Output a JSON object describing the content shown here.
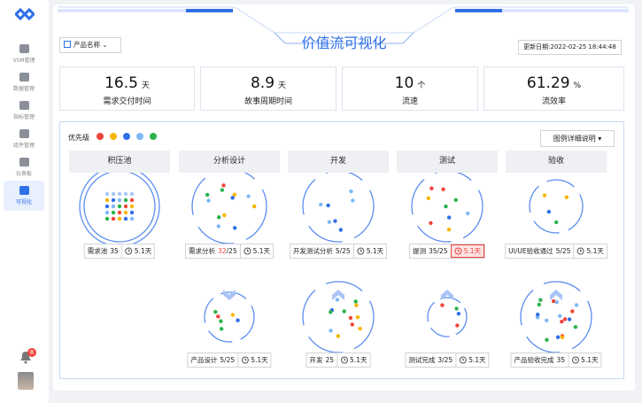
{
  "sidebar": {
    "menu": [
      "VSM管理",
      "数据管理",
      "指标管理",
      "组件管理",
      "仪表板",
      "可视化"
    ],
    "badge": "8"
  },
  "header": {
    "title": "价值流可视化",
    "product_select": "产品名称",
    "update_time": "更新日期:2022-02-25 18:44:48"
  },
  "metrics": [
    {
      "value": "16.5",
      "unit": "天",
      "label": "需求交付时间"
    },
    {
      "value": "8.9",
      "unit": "天",
      "label": "故事周期时间"
    },
    {
      "value": "10",
      "unit": "个",
      "label": "流速"
    },
    {
      "value": "61.29",
      "unit": "%",
      "label": "流效率"
    }
  ],
  "legend": {
    "label": "优先级",
    "button": "图例详细说明"
  },
  "stages": [
    {
      "name": "积压池",
      "top": {
        "label": "需求池",
        "count": "35",
        "time": "5.1天"
      }
    },
    {
      "name": "分析设计",
      "top": {
        "label": "需求分析",
        "count": "32",
        "limit": "/25",
        "time": "5.1天"
      },
      "bottom": {
        "label": "产品设计",
        "count": "5/25",
        "time": "5.1天"
      }
    },
    {
      "name": "开发",
      "top": {
        "label": "开发测试分析",
        "count": "5/25",
        "time": "5.1天"
      },
      "bottom": {
        "label": "开发",
        "count": "25",
        "time": "5.1天"
      }
    },
    {
      "name": "测试",
      "top": {
        "label": "提测",
        "count": "35/25",
        "time": "5.1天"
      },
      "bottom": {
        "label": "测试完成",
        "count": "3/25",
        "time": "5.1天"
      }
    },
    {
      "name": "验收",
      "top": {
        "label": "UI/UE验收通过",
        "count": "5/25",
        "time": "5.1天"
      },
      "bottom": {
        "label": "产品验收完成",
        "count": "35",
        "time": "5.1天"
      }
    }
  ]
}
